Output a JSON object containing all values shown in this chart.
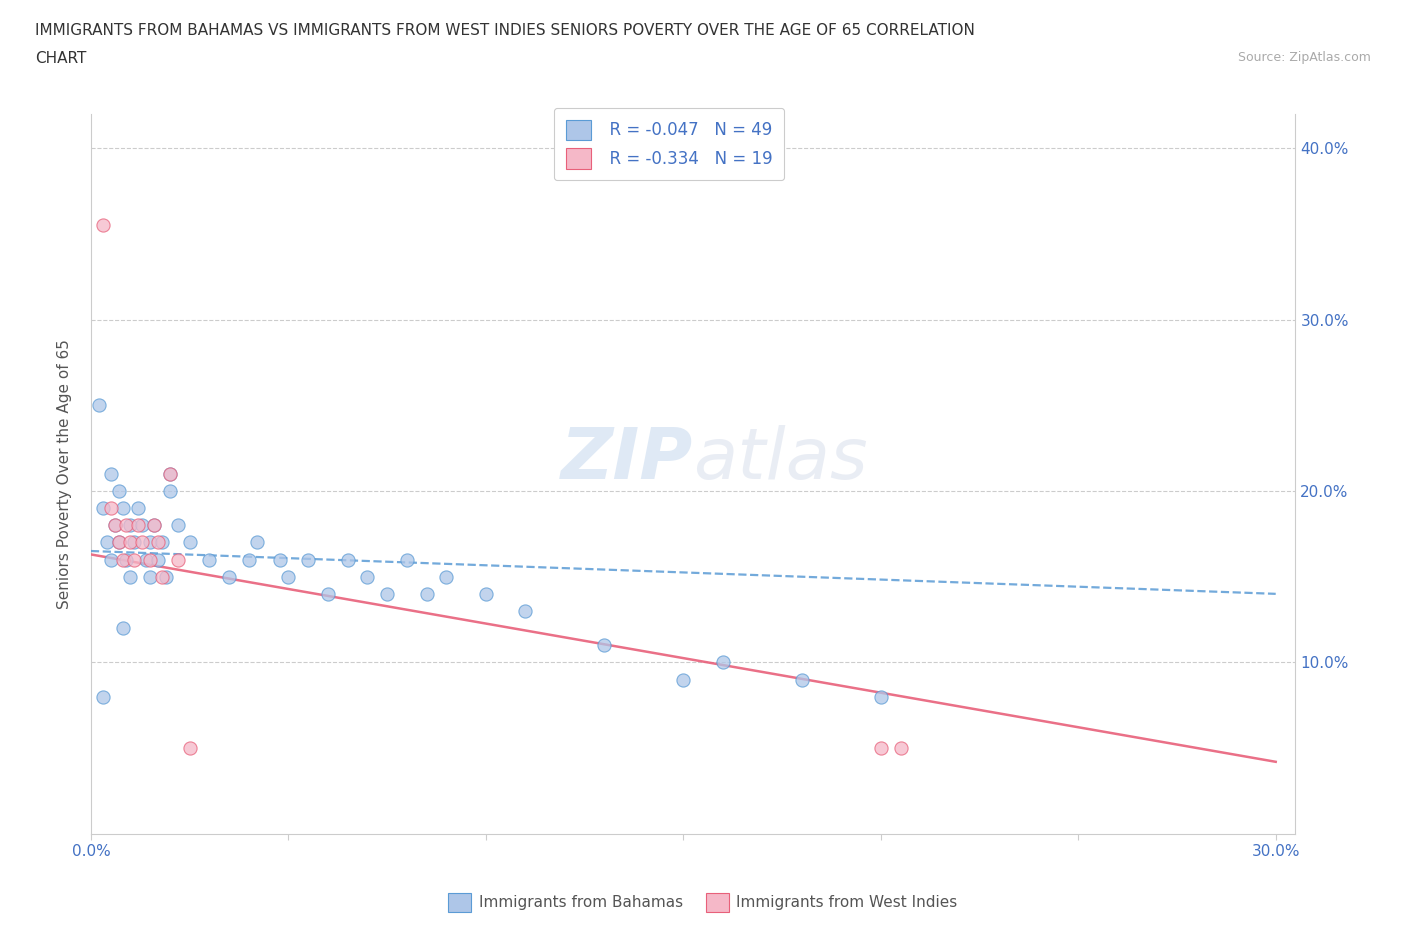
{
  "title_line1": "IMMIGRANTS FROM BAHAMAS VS IMMIGRANTS FROM WEST INDIES SENIORS POVERTY OVER THE AGE OF 65 CORRELATION",
  "title_line2": "CHART",
  "source_text": "Source: ZipAtlas.com",
  "ylabel": "Seniors Poverty Over the Age of 65",
  "xlim": [
    0.0,
    0.3
  ],
  "ylim": [
    0.0,
    0.42
  ],
  "legend_r_bahamas": "R = -0.047",
  "legend_n_bahamas": "N = 49",
  "legend_r_westindies": "R = -0.334",
  "legend_n_westindies": "N = 19",
  "bahamas_color": "#aec6e8",
  "westindies_color": "#f5b8c8",
  "bahamas_edge_color": "#5b9bd5",
  "westindies_edge_color": "#e8607a",
  "bahamas_line_color": "#5b9bd5",
  "westindies_line_color": "#e8607a",
  "watermark_color": "#d0dff0",
  "bahamas_x": [
    0.002,
    0.003,
    0.004,
    0.005,
    0.005,
    0.006,
    0.007,
    0.007,
    0.008,
    0.009,
    0.01,
    0.01,
    0.011,
    0.012,
    0.013,
    0.014,
    0.015,
    0.015,
    0.016,
    0.017,
    0.018,
    0.019,
    0.02,
    0.022,
    0.025,
    0.03,
    0.035,
    0.04,
    0.042,
    0.048,
    0.05,
    0.055,
    0.06,
    0.065,
    0.07,
    0.075,
    0.08,
    0.085,
    0.09,
    0.1,
    0.11,
    0.13,
    0.15,
    0.16,
    0.18,
    0.2,
    0.003,
    0.008,
    0.02
  ],
  "bahamas_y": [
    0.25,
    0.19,
    0.17,
    0.21,
    0.16,
    0.18,
    0.17,
    0.2,
    0.19,
    0.16,
    0.18,
    0.15,
    0.17,
    0.19,
    0.18,
    0.16,
    0.17,
    0.15,
    0.18,
    0.16,
    0.17,
    0.15,
    0.21,
    0.18,
    0.17,
    0.16,
    0.15,
    0.16,
    0.17,
    0.16,
    0.15,
    0.16,
    0.14,
    0.16,
    0.15,
    0.14,
    0.16,
    0.14,
    0.15,
    0.14,
    0.13,
    0.11,
    0.09,
    0.1,
    0.09,
    0.08,
    0.08,
    0.12,
    0.2
  ],
  "westindies_x": [
    0.003,
    0.005,
    0.006,
    0.007,
    0.008,
    0.009,
    0.01,
    0.011,
    0.012,
    0.013,
    0.015,
    0.016,
    0.017,
    0.018,
    0.02,
    0.022,
    0.025,
    0.2,
    0.205
  ],
  "westindies_y": [
    0.355,
    0.19,
    0.18,
    0.17,
    0.16,
    0.18,
    0.17,
    0.16,
    0.18,
    0.17,
    0.16,
    0.18,
    0.17,
    0.15,
    0.21,
    0.16,
    0.05,
    0.05,
    0.05
  ],
  "bahamas_trend_x": [
    0.0,
    0.3
  ],
  "bahamas_trend_y": [
    0.165,
    0.14
  ],
  "westindies_trend_x": [
    0.0,
    0.3
  ],
  "westindies_trend_y": [
    0.163,
    0.042
  ]
}
